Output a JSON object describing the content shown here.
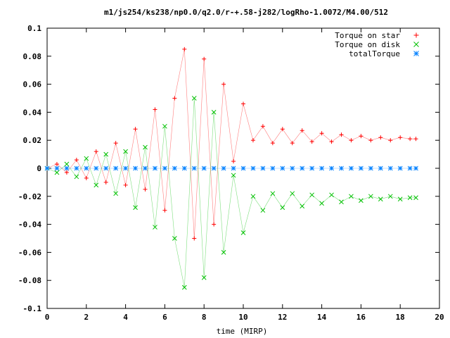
{
  "chart_data": {
    "type": "scatter",
    "title": "m1/js254/ks238/np0.0/q2.0/r-+.58-j282/logRho-1.0072/M4.00/512",
    "xlabel": "time (MIRP)",
    "ylabel": "",
    "xlim": [
      0,
      20
    ],
    "ylim": [
      -0.1,
      0.1
    ],
    "xticks": [
      "0",
      "2",
      "4",
      "6",
      "8",
      "10",
      "12",
      "14",
      "16",
      "18",
      "20"
    ],
    "yticks": [
      "0.1",
      "0.08",
      "0.06",
      "0.04",
      "0.02",
      "0",
      "-0.02",
      "-0.04",
      "-0.06",
      "-0.08",
      "-0.1"
    ],
    "grid": false,
    "legend_position": "top-right",
    "legend_style": "no-box",
    "series": [
      {
        "name": "Torque on star",
        "marker": "+",
        "color": "#ff0000",
        "x": [
          0.0,
          0.5,
          1.0,
          1.5,
          2.0,
          2.5,
          3.0,
          3.5,
          4.0,
          4.5,
          5.0,
          5.5,
          6.0,
          6.5,
          7.0,
          7.5,
          8.0,
          8.5,
          9.0,
          9.5,
          10.0,
          10.5,
          11.0,
          11.5,
          12.0,
          12.5,
          13.0,
          13.5,
          14.0,
          14.5,
          15.0,
          15.5,
          16.0,
          16.5,
          17.0,
          17.5,
          18.0,
          18.5,
          18.8
        ],
        "y": [
          0.0,
          0.003,
          -0.003,
          0.006,
          -0.007,
          0.012,
          -0.01,
          0.018,
          -0.012,
          0.028,
          -0.015,
          0.042,
          -0.03,
          0.05,
          0.085,
          -0.05,
          0.078,
          -0.04,
          0.06,
          0.005,
          0.046,
          0.02,
          0.03,
          0.018,
          0.028,
          0.018,
          0.027,
          0.019,
          0.025,
          0.019,
          0.024,
          0.02,
          0.023,
          0.02,
          0.022,
          0.02,
          0.022,
          0.021,
          0.021
        ]
      },
      {
        "name": "Torque on disk",
        "marker": "x",
        "color": "#00c000",
        "x": [
          0.0,
          0.5,
          1.0,
          1.5,
          2.0,
          2.5,
          3.0,
          3.5,
          4.0,
          4.5,
          5.0,
          5.5,
          6.0,
          6.5,
          7.0,
          7.5,
          8.0,
          8.5,
          9.0,
          9.5,
          10.0,
          10.5,
          11.0,
          11.5,
          12.0,
          12.5,
          13.0,
          13.5,
          14.0,
          14.5,
          15.0,
          15.5,
          16.0,
          16.5,
          17.0,
          17.5,
          18.0,
          18.5,
          18.8
        ],
        "y": [
          0.0,
          -0.003,
          0.003,
          -0.006,
          0.007,
          -0.012,
          0.01,
          -0.018,
          0.012,
          -0.028,
          0.015,
          -0.042,
          0.03,
          -0.05,
          -0.085,
          0.05,
          -0.078,
          0.04,
          -0.06,
          -0.005,
          -0.046,
          -0.02,
          -0.03,
          -0.018,
          -0.028,
          -0.018,
          -0.027,
          -0.019,
          -0.025,
          -0.019,
          -0.024,
          -0.02,
          -0.023,
          -0.02,
          -0.022,
          -0.02,
          -0.022,
          -0.021,
          -0.021
        ]
      },
      {
        "name": "totalTorque",
        "marker": "*",
        "color": "#0080ff",
        "x": [
          0.0,
          0.5,
          1.0,
          1.5,
          2.0,
          2.5,
          3.0,
          3.5,
          4.0,
          4.5,
          5.0,
          5.5,
          6.0,
          6.5,
          7.0,
          7.5,
          8.0,
          8.5,
          9.0,
          9.5,
          10.0,
          10.5,
          11.0,
          11.5,
          12.0,
          12.5,
          13.0,
          13.5,
          14.0,
          14.5,
          15.0,
          15.5,
          16.0,
          16.5,
          17.0,
          17.5,
          18.0,
          18.5,
          18.8
        ],
        "y": [
          0.0,
          0.0,
          0.0,
          0.0,
          0.0,
          0.0,
          0.0,
          0.0,
          0.0,
          0.0,
          0.0,
          0.0,
          0.0,
          0.0,
          0.0,
          0.0,
          0.0,
          0.0,
          0.0,
          0.0,
          0.0,
          0.0,
          0.0,
          0.0,
          0.0,
          0.0,
          0.0,
          0.0,
          0.0,
          0.0,
          0.0,
          0.0,
          0.0,
          0.0,
          0.0,
          0.0,
          0.0,
          0.0,
          0.0
        ]
      }
    ]
  }
}
